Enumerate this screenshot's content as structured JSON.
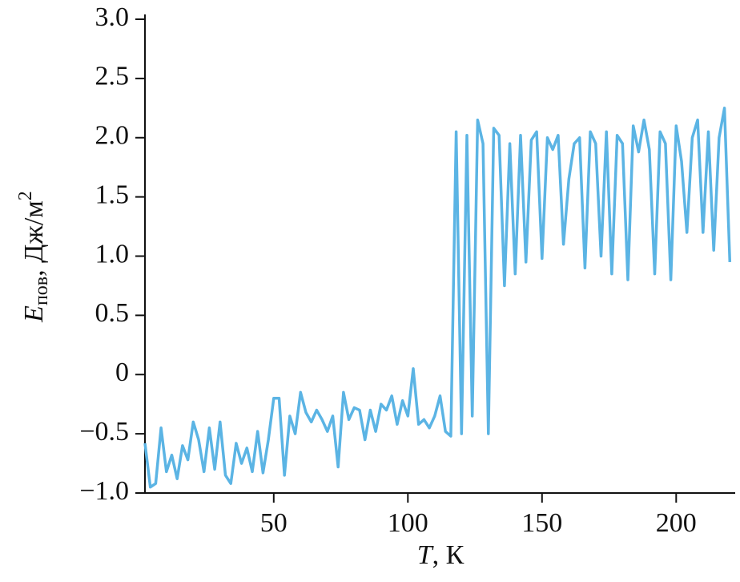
{
  "chart_data": {
    "type": "line",
    "xlabel": {
      "symbol": "T",
      "unit": ", К"
    },
    "ylabel": {
      "symbol": "E",
      "subscript": "пов",
      "unit": ", Дж/м",
      "superscript": "2"
    },
    "x": [
      2,
      4,
      6,
      8,
      10,
      12,
      14,
      16,
      18,
      20,
      22,
      24,
      26,
      28,
      30,
      32,
      34,
      36,
      38,
      40,
      42,
      44,
      46,
      48,
      50,
      52,
      54,
      56,
      58,
      60,
      62,
      64,
      66,
      68,
      70,
      72,
      74,
      76,
      78,
      80,
      82,
      84,
      86,
      88,
      90,
      92,
      94,
      96,
      98,
      100,
      102,
      104,
      106,
      108,
      110,
      112,
      114,
      116,
      118,
      120,
      122,
      124,
      126,
      128,
      130,
      132,
      134,
      136,
      138,
      140,
      142,
      144,
      146,
      148,
      150,
      152,
      154,
      156,
      158,
      160,
      162,
      164,
      166,
      168,
      170,
      172,
      174,
      176,
      178,
      180,
      182,
      184,
      186,
      188,
      190,
      192,
      194,
      196,
      198,
      200,
      202,
      204,
      206,
      208,
      210,
      212,
      214,
      216,
      218,
      220
    ],
    "series": [
      {
        "color": "#5bb4e4",
        "values": [
          -0.58,
          -0.95,
          -0.92,
          -0.45,
          -0.82,
          -0.68,
          -0.88,
          -0.6,
          -0.72,
          -0.4,
          -0.55,
          -0.82,
          -0.45,
          -0.8,
          -0.4,
          -0.85,
          -0.92,
          -0.58,
          -0.75,
          -0.62,
          -0.82,
          -0.48,
          -0.83,
          -0.55,
          -0.2,
          -0.2,
          -0.85,
          -0.35,
          -0.5,
          -0.15,
          -0.32,
          -0.4,
          -0.3,
          -0.38,
          -0.48,
          -0.35,
          -0.78,
          -0.15,
          -0.38,
          -0.28,
          -0.3,
          -0.55,
          -0.3,
          -0.48,
          -0.25,
          -0.3,
          -0.18,
          -0.42,
          -0.22,
          -0.35,
          0.05,
          -0.42,
          -0.38,
          -0.45,
          -0.35,
          -0.18,
          -0.48,
          -0.52,
          2.05,
          -0.5,
          2.02,
          -0.35,
          2.15,
          1.95,
          -0.5,
          2.08,
          2.02,
          0.75,
          1.95,
          0.85,
          2.02,
          0.95,
          1.98,
          2.05,
          0.98,
          2.0,
          1.9,
          2.02,
          1.1,
          1.65,
          1.95,
          2.0,
          0.9,
          2.05,
          1.95,
          1.0,
          2.05,
          0.85,
          2.02,
          1.95,
          0.8,
          2.1,
          1.88,
          2.15,
          1.9,
          0.85,
          2.05,
          1.95,
          0.8,
          2.1,
          1.8,
          1.2,
          2.0,
          2.15,
          1.2,
          2.05,
          1.05,
          2.0,
          2.25,
          0.95
        ]
      }
    ],
    "xlim": [
      2,
      222
    ],
    "xticks": [
      50,
      100,
      150,
      200
    ],
    "ylim": [
      -1,
      3
    ],
    "yticks": [
      {
        "value": -1,
        "label": "−1.0"
      },
      {
        "value": -0.5,
        "label": "−0.5"
      },
      0,
      0.5,
      {
        "value": 1,
        "label": "1.0"
      },
      1.5,
      {
        "value": 2,
        "label": "2.0"
      },
      2.5,
      {
        "value": 3,
        "label": "3.0"
      }
    ]
  }
}
